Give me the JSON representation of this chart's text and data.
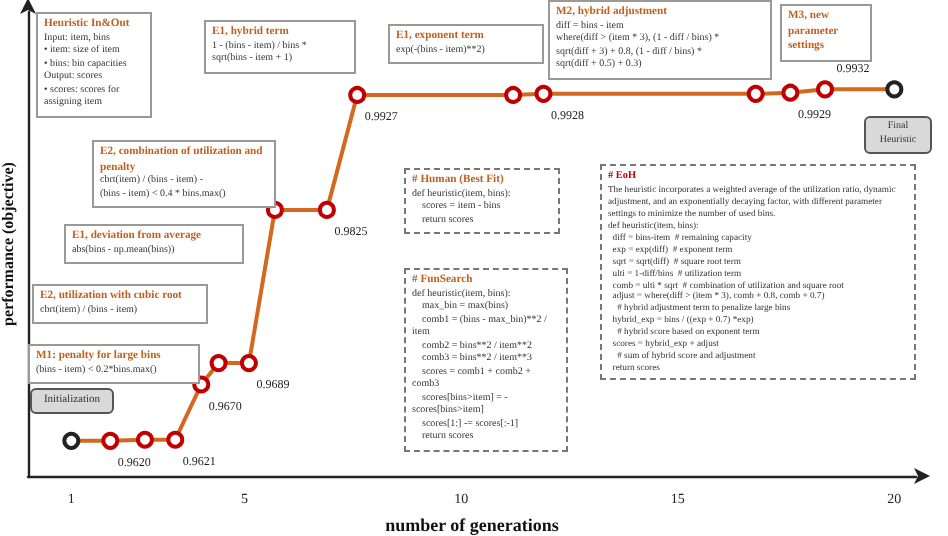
{
  "chart_data": {
    "type": "line",
    "xlabel": "number of generations",
    "ylabel": "performance (objective)",
    "x": [
      1.0,
      1.9,
      2.7,
      3.4,
      4.0,
      4.4,
      5.1,
      5.7,
      6.9,
      7.6,
      11.2,
      11.9,
      16.8,
      17.6,
      18.4,
      20.0
    ],
    "values": [
      0.962,
      0.962,
      0.9621,
      0.9621,
      0.967,
      0.9689,
      0.9689,
      0.9825,
      0.9825,
      0.9927,
      0.9927,
      0.9928,
      0.9928,
      0.9929,
      0.9932,
      0.9932
    ],
    "value_labels": [
      null,
      "0.9620",
      null,
      "0.9621",
      "0.9670",
      null,
      "0.9689",
      null,
      "0.9825",
      "0.9927",
      null,
      "0.9928",
      null,
      "0.9929",
      "0.9932",
      null
    ],
    "color": "#d2691e",
    "colors": [
      "#222222",
      "#c00000",
      "#c00000",
      "#c00000",
      "#c00000",
      "#c00000",
      "#c00000",
      "#c00000",
      "#c00000",
      "#c00000",
      "#c00000",
      "#c00000",
      "#c00000",
      "#c00000",
      "#c00000",
      "#222222"
    ],
    "marker": "circle",
    "xlim": [
      0,
      20.5
    ],
    "xticks": [
      1,
      5,
      10,
      15,
      20
    ],
    "tick_labels": "x",
    "annotations": [
      "Heuristic In&Out\nInput: item, bins\n• item: size of item\n• bins: bin capacities\nOutput: scores\n• scores: scores for assigning item",
      "Initialization",
      "Final\nHeuristic",
      "M1: penalty for large bins\n(bins - item) < 0.2*bins.max()",
      "E2, utilization with cubic root\ncbrt(item) / (bins - item)",
      "E1, deviation from average\nabs(bins - np.mean(bins))",
      "E2, combination of utilization and penalty\ncbrt(item) / (bins - item) -\n(bins - item) < 0.4 * bins.max()",
      "E1, hybrid term\n1 - (bins - item) / bins *\nsqrt(bins - item + 1)",
      "E1, exponent term\nexp(-(bins - item)**2)",
      "M2, hybrid adjustment\ndiff = bins - item\nwhere(diff > (item * 3), (1 - diff / bins) *\nsqrt(diff + 3) + 0.8, (1 - diff / bins) *\nsqrt(diff + 0.5) + 0.3)",
      "M3, new parameter settings",
      "# Human (Best Fit)\ndef heuristic(item, bins):\n    scores = item - bins\n    return scores",
      "# FunSearch\ndef heuristic(item, bins):\n    max_bin = max(bins)\n    comb1 = (bins - max_bin)**2 / item\n    comb2 = bins**2 / item**2\n    comb3 = bins**2 / item**3\n    scores = comb1 + comb2 + comb3\n    scores[bins>item] = -scores[bins>item]\n    scores[1:] -= scores[:-1]\n    return scores",
      "# EoH\nThe heuristic incorporates a weighted average of the utilization ratio, dynamic adjustment, and an exponentially decaying factor, with different parameter settings to minimize the number of used bins.\ndef heuristic(item, bins):\n  diff = bins-item  # remaining capacity\n  exp = exp(diff)  # exponent term\n  sqrt = sqrt(diff)  # square root term\n  ulti = 1-diff/bins  # utilization term\n  comb = ulti * sqrt  # combination of utilization and square root\n  adjust = where(diff > (item * 3), comb + 0.8, comb + 0.7)\n    # hybrid adjustment term to penalize large bins\n  hybrid_exp = bins / ((exp + 0.7) *exp)\n    # hybrid score based on exponent term\n  scores = hybrid_exp + adjust\n    # sum of hybrid score and adjustment\n  return scores"
    ]
  }
}
